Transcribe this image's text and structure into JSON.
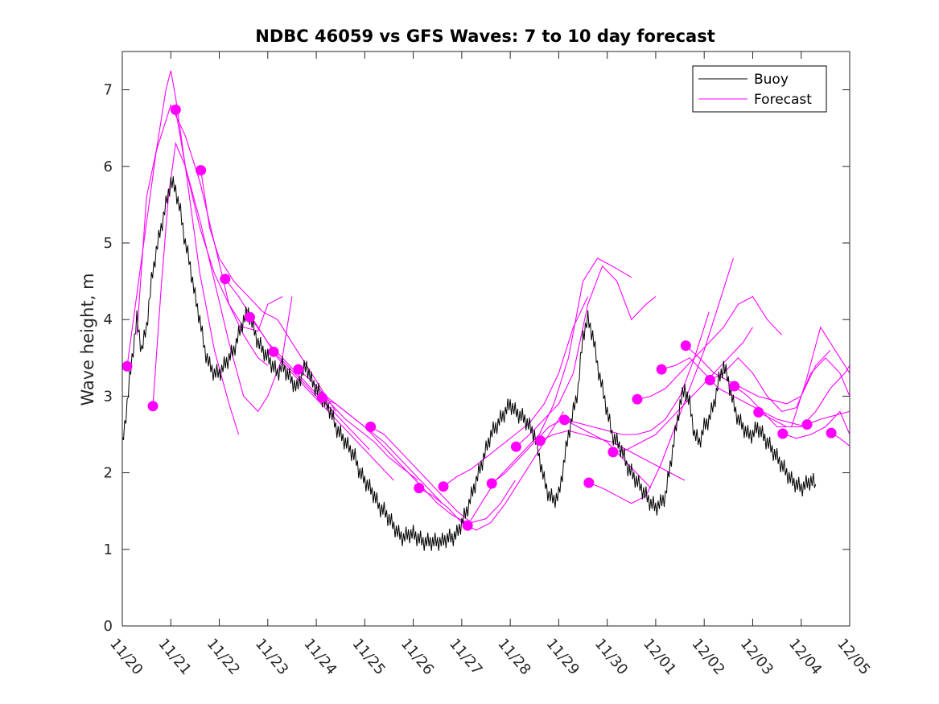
{
  "chart_data": {
    "type": "line",
    "title": "NDBC 46059 vs GFS Waves: 7 to 10 day forecast",
    "xlabel": "",
    "ylabel": "Wave height, m",
    "xlim": [
      0,
      15
    ],
    "ylim": [
      0,
      7.5
    ],
    "x_ticks": [
      0,
      1,
      2,
      3,
      4,
      5,
      6,
      7,
      8,
      9,
      10,
      11,
      12,
      13,
      14,
      15
    ],
    "x_tick_labels": [
      "11/20",
      "11/21",
      "11/22",
      "11/23",
      "11/24",
      "11/25",
      "11/26",
      "11/27",
      "11/28",
      "11/29",
      "11/30",
      "12/01",
      "12/02",
      "12/03",
      "12/04",
      "12/05"
    ],
    "y_ticks": [
      0,
      1,
      2,
      3,
      4,
      5,
      6,
      7
    ],
    "y_tick_labels": [
      "0",
      "1",
      "2",
      "3",
      "4",
      "5",
      "6",
      "7"
    ],
    "legend": {
      "placement": "top-right",
      "entries": [
        {
          "label": "Buoy",
          "color": "#000000"
        },
        {
          "label": "Forecast",
          "color": "#ff00ff"
        }
      ]
    },
    "buoy": {
      "name": "Buoy",
      "color": "#000000",
      "x": [
        0.0,
        0.1,
        0.2,
        0.3,
        0.4,
        0.5,
        0.6,
        0.7,
        0.8,
        0.9,
        1.0,
        1.1,
        1.2,
        1.3,
        1.4,
        1.5,
        1.6,
        1.7,
        1.8,
        1.9,
        2.0,
        2.1,
        2.2,
        2.3,
        2.4,
        2.5,
        2.6,
        2.7,
        2.8,
        2.9,
        3.0,
        3.1,
        3.2,
        3.3,
        3.4,
        3.5,
        3.6,
        3.7,
        3.8,
        3.9,
        4.0,
        4.1,
        4.2,
        4.3,
        4.4,
        4.5,
        4.6,
        4.7,
        4.8,
        4.9,
        5.0,
        5.1,
        5.2,
        5.3,
        5.4,
        5.5,
        5.6,
        5.7,
        5.8,
        5.9,
        6.0,
        6.1,
        6.2,
        6.3,
        6.4,
        6.5,
        6.6,
        6.7,
        6.8,
        6.9,
        7.0,
        7.1,
        7.2,
        7.3,
        7.4,
        7.5,
        7.6,
        7.7,
        7.8,
        7.9,
        8.0,
        8.1,
        8.2,
        8.3,
        8.4,
        8.5,
        8.6,
        8.7,
        8.8,
        8.9,
        9.0,
        9.1,
        9.2,
        9.3,
        9.4,
        9.5,
        9.6,
        9.7,
        9.8,
        9.9,
        10.0,
        10.1,
        10.2,
        10.3,
        10.4,
        10.5,
        10.6,
        10.7,
        10.8,
        10.9,
        11.0,
        11.1,
        11.2,
        11.3,
        11.4,
        11.5,
        11.6,
        11.7,
        11.8,
        11.9,
        12.0,
        12.1,
        12.2,
        12.3,
        12.4,
        12.5,
        12.6,
        12.7,
        12.8,
        12.9,
        13.0,
        13.1,
        13.2,
        13.3,
        13.4,
        13.5,
        13.6,
        13.7,
        13.8,
        13.9,
        14.0,
        14.1,
        14.2,
        14.3
      ],
      "values": [
        2.35,
        2.9,
        3.5,
        4.0,
        3.6,
        3.9,
        4.5,
        4.9,
        5.2,
        5.5,
        5.8,
        5.7,
        5.4,
        5.0,
        4.7,
        4.3,
        4.0,
        3.6,
        3.4,
        3.3,
        3.3,
        3.4,
        3.5,
        3.6,
        3.8,
        4.0,
        4.1,
        3.9,
        3.7,
        3.6,
        3.5,
        3.4,
        3.3,
        3.4,
        3.3,
        3.2,
        3.1,
        3.3,
        3.4,
        3.2,
        3.1,
        3.0,
        2.9,
        2.8,
        2.6,
        2.5,
        2.4,
        2.3,
        2.2,
        2.0,
        1.9,
        1.8,
        1.7,
        1.55,
        1.5,
        1.4,
        1.3,
        1.2,
        1.15,
        1.2,
        1.2,
        1.15,
        1.1,
        1.1,
        1.1,
        1.1,
        1.1,
        1.15,
        1.15,
        1.2,
        1.35,
        1.5,
        1.7,
        1.9,
        2.1,
        2.3,
        2.5,
        2.6,
        2.7,
        2.8,
        2.9,
        2.8,
        2.75,
        2.7,
        2.6,
        2.5,
        2.2,
        1.9,
        1.7,
        1.65,
        1.7,
        2.1,
        2.5,
        2.8,
        3.1,
        3.8,
        4.0,
        3.8,
        3.4,
        3.1,
        2.8,
        2.5,
        2.4,
        2.3,
        2.1,
        2.0,
        1.9,
        1.8,
        1.7,
        1.6,
        1.55,
        1.6,
        1.7,
        2.1,
        2.5,
        2.9,
        3.1,
        2.9,
        2.5,
        2.4,
        2.6,
        2.7,
        2.9,
        3.2,
        3.4,
        3.2,
        2.9,
        2.7,
        2.6,
        2.5,
        2.5,
        2.6,
        2.5,
        2.4,
        2.3,
        2.2,
        2.1,
        2.0,
        1.9,
        1.85,
        1.8,
        1.85,
        1.9,
        1.85
      ]
    },
    "forecast_markers": {
      "name": "Forecast",
      "color": "#ff00ff",
      "x": [
        0.1,
        0.63,
        1.1,
        1.62,
        2.12,
        2.63,
        3.12,
        3.63,
        4.12,
        5.12,
        6.12,
        6.62,
        7.12,
        7.62,
        8.12,
        8.62,
        9.12,
        9.62,
        10.12,
        10.62,
        11.12,
        11.62,
        12.12,
        12.62,
        13.12,
        13.62,
        14.12,
        14.62
      ],
      "values": [
        3.39,
        2.87,
        6.74,
        5.95,
        4.53,
        4.03,
        3.58,
        3.35,
        2.98,
        2.6,
        1.8,
        1.82,
        1.31,
        1.86,
        2.34,
        2.42,
        2.69,
        1.87,
        2.27,
        2.96,
        3.35,
        3.66,
        3.21,
        3.13,
        2.79,
        2.51,
        2.63,
        2.52
      ]
    },
    "forecast_series": [
      {
        "name": "Forecast",
        "x": [
          0.1,
          0.4,
          0.7,
          1.0,
          1.3,
          1.6,
          1.9,
          2.2,
          2.5,
          2.8,
          3.0
        ],
        "values": [
          3.39,
          4.8,
          6.2,
          6.8,
          6.4,
          5.8,
          5.0,
          4.2,
          3.8,
          3.5,
          3.4
        ]
      },
      {
        "name": "Forecast",
        "x": [
          0.3,
          0.5,
          0.7,
          0.9,
          1.0,
          1.1,
          1.3,
          1.6,
          1.9,
          2.2,
          2.4
        ],
        "values": [
          3.8,
          5.6,
          6.2,
          7.0,
          7.25,
          6.9,
          6.0,
          4.6,
          3.6,
          2.9,
          2.5
        ]
      },
      {
        "name": "Forecast",
        "x": [
          0.63,
          0.8,
          0.95,
          1.1,
          1.3,
          1.6,
          1.9,
          2.2,
          2.5,
          2.8,
          3.0,
          3.3,
          3.5
        ],
        "values": [
          2.87,
          4.4,
          5.6,
          6.3,
          6.0,
          5.3,
          4.5,
          3.7,
          3.0,
          2.8,
          3.0,
          3.5,
          4.3
        ]
      },
      {
        "name": "Forecast",
        "x": [
          1.1,
          1.3,
          1.6,
          1.9,
          2.2,
          2.5,
          2.8,
          3.0,
          3.3
        ],
        "values": [
          6.74,
          6.0,
          5.2,
          4.6,
          4.2,
          3.9,
          3.85,
          4.2,
          4.3
        ]
      },
      {
        "name": "Forecast",
        "x": [
          1.62,
          1.8,
          2.0,
          2.3,
          2.6,
          2.9,
          3.2,
          3.5,
          3.8,
          4.1,
          4.4
        ],
        "values": [
          5.95,
          5.2,
          4.8,
          4.5,
          4.3,
          4.1,
          4.0,
          3.7,
          3.4,
          3.1,
          2.8
        ]
      },
      {
        "name": "Forecast",
        "x": [
          2.12,
          2.4,
          2.7,
          3.0,
          3.3,
          3.6,
          3.9,
          4.2,
          4.5,
          4.8,
          5.1
        ],
        "values": [
          4.53,
          4.3,
          4.0,
          3.7,
          3.5,
          3.3,
          3.1,
          2.9,
          2.7,
          2.5,
          2.3
        ]
      },
      {
        "name": "Forecast",
        "x": [
          2.63,
          2.9,
          3.2,
          3.5,
          3.8,
          4.1,
          4.4,
          4.7,
          5.0,
          5.3,
          5.6
        ],
        "values": [
          4.03,
          3.8,
          3.5,
          3.3,
          3.1,
          2.9,
          2.7,
          2.5,
          2.3,
          2.1,
          1.9
        ]
      },
      {
        "name": "Forecast",
        "x": [
          3.12,
          3.4,
          3.7,
          4.0,
          4.3,
          4.6,
          4.9,
          5.2,
          5.5,
          5.8,
          6.1
        ],
        "values": [
          3.58,
          3.4,
          3.2,
          3.0,
          2.9,
          2.7,
          2.55,
          2.4,
          2.2,
          2.05,
          1.9
        ]
      },
      {
        "name": "Forecast",
        "x": [
          3.63,
          3.9,
          4.2,
          4.5,
          4.8,
          5.1,
          5.4,
          5.7,
          6.0,
          6.3,
          6.6
        ],
        "values": [
          3.35,
          3.2,
          3.0,
          2.85,
          2.7,
          2.55,
          2.4,
          2.2,
          2.0,
          1.8,
          1.6
        ]
      },
      {
        "name": "Forecast",
        "x": [
          4.12,
          4.4,
          4.7,
          5.0,
          5.3,
          5.6,
          5.9,
          6.2,
          6.5,
          6.8,
          7.1
        ],
        "values": [
          2.98,
          2.9,
          2.75,
          2.6,
          2.4,
          2.2,
          2.0,
          1.8,
          1.6,
          1.45,
          1.35
        ]
      },
      {
        "name": "Forecast",
        "x": [
          5.12,
          5.4,
          5.7,
          6.0,
          6.3,
          6.6,
          6.9,
          7.2,
          7.5,
          7.8,
          8.1
        ],
        "values": [
          2.6,
          2.5,
          2.3,
          2.1,
          1.9,
          1.7,
          1.5,
          1.35,
          1.4,
          1.6,
          1.9
        ]
      },
      {
        "name": "Forecast",
        "x": [
          6.12,
          6.4,
          6.7,
          7.0,
          7.3,
          7.6,
          7.9,
          8.2,
          8.5,
          8.8,
          9.1
        ],
        "values": [
          1.8,
          1.7,
          1.55,
          1.35,
          1.25,
          1.35,
          1.6,
          1.9,
          2.2,
          2.5,
          2.8
        ]
      },
      {
        "name": "Forecast",
        "x": [
          6.62,
          6.9,
          7.2,
          7.5,
          7.8,
          8.1,
          8.4,
          8.7,
          9.0,
          9.3,
          9.6
        ],
        "values": [
          1.82,
          1.95,
          2.05,
          2.2,
          2.35,
          2.5,
          2.65,
          2.9,
          3.3,
          3.9,
          4.3
        ]
      },
      {
        "name": "Forecast",
        "x": [
          7.12,
          7.4,
          7.7,
          8.0,
          8.3,
          8.6,
          8.9,
          9.2,
          9.5,
          9.8,
          10.1,
          10.5
        ],
        "values": [
          1.31,
          1.6,
          1.9,
          2.1,
          2.3,
          2.5,
          2.9,
          3.5,
          4.5,
          4.8,
          4.7,
          4.55
        ]
      },
      {
        "name": "Forecast",
        "x": [
          7.62,
          7.9,
          8.2,
          8.5,
          8.8,
          9.1,
          9.4,
          9.7,
          10.0,
          10.3,
          10.6,
          10.9
        ],
        "values": [
          1.86,
          2.0,
          2.2,
          2.4,
          2.6,
          2.7,
          2.6,
          2.5,
          2.4,
          2.2,
          2.0,
          1.8
        ]
      },
      {
        "name": "Forecast",
        "x": [
          8.12,
          8.4,
          8.7,
          9.0,
          9.3,
          9.6,
          9.9,
          10.2,
          10.5,
          10.8,
          11.0
        ],
        "values": [
          2.34,
          2.5,
          2.7,
          2.9,
          3.3,
          4.2,
          4.7,
          4.5,
          4.0,
          4.2,
          4.3
        ]
      },
      {
        "name": "Forecast",
        "x": [
          8.62,
          8.9,
          9.2,
          9.5,
          9.8,
          10.1,
          10.4,
          10.7,
          11.0,
          11.3,
          11.6
        ],
        "values": [
          2.42,
          2.5,
          2.55,
          2.5,
          2.45,
          2.4,
          2.3,
          2.2,
          2.1,
          2.0,
          1.9
        ]
      },
      {
        "name": "Forecast",
        "x": [
          9.12,
          9.4,
          9.7,
          10.0,
          10.3,
          10.6,
          10.9,
          11.2,
          11.5,
          11.8,
          12.1
        ],
        "values": [
          2.69,
          2.65,
          2.6,
          2.55,
          2.5,
          2.5,
          2.55,
          2.7,
          3.0,
          3.5,
          4.1
        ]
      },
      {
        "name": "Forecast",
        "x": [
          9.62,
          9.9,
          10.2,
          10.5,
          10.8,
          11.1,
          11.4,
          11.7,
          12.0,
          12.3,
          12.6
        ],
        "values": [
          1.87,
          1.8,
          1.7,
          1.6,
          1.7,
          2.1,
          2.6,
          3.1,
          3.6,
          4.2,
          4.8
        ]
      },
      {
        "name": "Forecast",
        "x": [
          10.12,
          10.4,
          10.7,
          11.0,
          11.3,
          11.6,
          11.9,
          12.2,
          12.5,
          12.8,
          13.0
        ],
        "values": [
          2.27,
          2.3,
          2.4,
          2.5,
          2.7,
          2.9,
          3.1,
          3.3,
          3.5,
          3.7,
          3.9
        ]
      },
      {
        "name": "Forecast",
        "x": [
          10.62,
          10.9,
          11.2,
          11.5,
          11.8,
          12.1,
          12.4,
          12.7,
          13.0,
          13.3,
          13.6
        ],
        "values": [
          2.96,
          3.0,
          3.1,
          3.3,
          3.5,
          3.7,
          3.9,
          4.2,
          4.3,
          4.0,
          3.8
        ]
      },
      {
        "name": "Forecast",
        "x": [
          11.12,
          11.4,
          11.7,
          12.0,
          12.3,
          12.6,
          12.9,
          13.2,
          13.5,
          13.8,
          14.1
        ],
        "values": [
          3.35,
          3.4,
          3.5,
          3.3,
          3.1,
          3.0,
          2.9,
          2.8,
          2.7,
          2.65,
          2.6
        ]
      },
      {
        "name": "Forecast",
        "x": [
          11.62,
          11.9,
          12.2,
          12.5,
          12.8,
          13.1,
          13.4,
          13.7,
          14.0,
          14.3,
          14.6
        ],
        "values": [
          3.66,
          3.5,
          3.3,
          3.2,
          3.1,
          3.0,
          2.95,
          2.9,
          3.0,
          3.4,
          3.6
        ]
      },
      {
        "name": "Forecast",
        "x": [
          12.12,
          12.4,
          12.7,
          13.0,
          13.3,
          13.6,
          13.9,
          14.2,
          14.5,
          14.8,
          15.0
        ],
        "values": [
          3.21,
          3.3,
          3.5,
          3.3,
          3.0,
          2.8,
          2.85,
          3.3,
          3.5,
          3.3,
          3.0
        ]
      },
      {
        "name": "Forecast",
        "x": [
          12.62,
          12.9,
          13.2,
          13.5,
          13.8,
          14.1,
          14.4,
          14.7,
          15.0
        ],
        "values": [
          3.13,
          3.0,
          2.8,
          2.6,
          2.6,
          3.2,
          3.9,
          3.6,
          3.3
        ]
      },
      {
        "name": "Forecast",
        "x": [
          13.12,
          13.4,
          13.7,
          14.0,
          14.3,
          14.6,
          14.9,
          15.0
        ],
        "values": [
          2.79,
          2.7,
          2.6,
          2.6,
          2.8,
          3.1,
          3.3,
          3.4
        ]
      },
      {
        "name": "Forecast",
        "x": [
          13.62,
          13.9,
          14.2,
          14.5,
          14.8,
          15.0
        ],
        "values": [
          2.51,
          2.45,
          2.5,
          2.6,
          2.8,
          2.5
        ]
      },
      {
        "name": "Forecast",
        "x": [
          14.12,
          14.4,
          14.7,
          15.0
        ],
        "values": [
          2.63,
          2.7,
          2.75,
          2.8
        ]
      },
      {
        "name": "Forecast",
        "x": [
          14.62,
          14.8,
          15.0
        ],
        "values": [
          2.52,
          2.45,
          2.35
        ]
      }
    ]
  }
}
